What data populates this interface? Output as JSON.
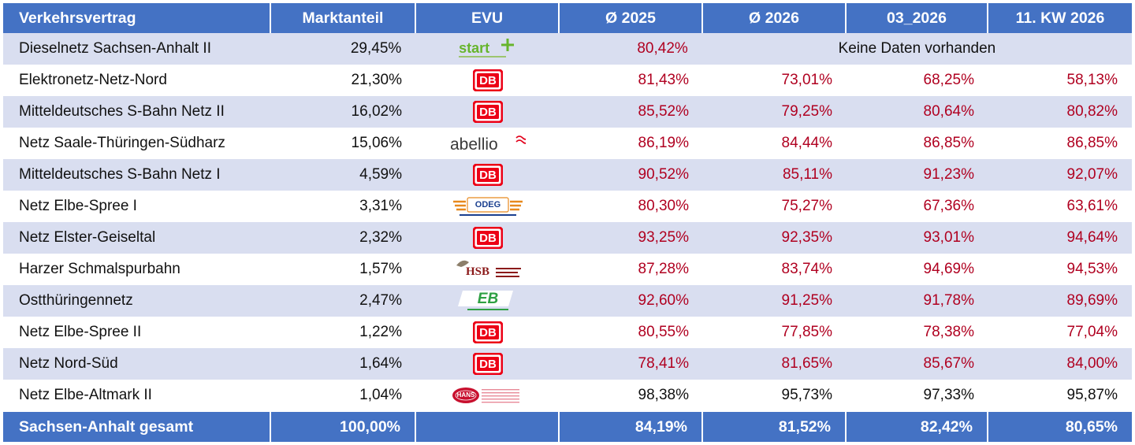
{
  "headers": [
    "Verkehrsvertrag",
    "Marktanteil",
    "EVU",
    "Ø 2025",
    "Ø 2026",
    "03_2026",
    "11. KW 2026"
  ],
  "rows": [
    {
      "name": "Dieselnetz Sachsen-Anhalt II",
      "share": "29,45%",
      "evu": "start-logo",
      "evu_text": "start",
      "v2025": "80,42%",
      "nodata": "Keine Daten vorhanden"
    },
    {
      "name": "Elektronetz-Netz-Nord",
      "share": "21,30%",
      "evu": "db-logo",
      "evu_text": "DB",
      "v2025": "81,43%",
      "v2026": "73,01%",
      "v03": "68,25%",
      "vkw": "58,13%"
    },
    {
      "name": "Mitteldeutsches S-Bahn Netz II",
      "share": "16,02%",
      "evu": "db-logo",
      "evu_text": "DB",
      "v2025": "85,52%",
      "v2026": "79,25%",
      "v03": "80,64%",
      "vkw": "80,82%"
    },
    {
      "name": "Netz Saale-Thüringen-Südharz",
      "share": "15,06%",
      "evu": "abellio-logo",
      "evu_text": "abellio",
      "v2025": "86,19%",
      "v2026": "84,44%",
      "v03": "86,85%",
      "vkw": "86,85%"
    },
    {
      "name": "Mitteldeutsches S-Bahn Netz I",
      "share": "4,59%",
      "evu": "db-logo",
      "evu_text": "DB",
      "v2025": "90,52%",
      "v2026": "85,11%",
      "v03": "91,23%",
      "vkw": "92,07%"
    },
    {
      "name": "Netz Elbe-Spree I",
      "share": "3,31%",
      "evu": "odeg-logo",
      "evu_text": "ODEG",
      "v2025": "80,30%",
      "v2026": "75,27%",
      "v03": "67,36%",
      "vkw": "63,61%"
    },
    {
      "name": "Netz Elster-Geiseltal",
      "share": "2,32%",
      "evu": "db-logo",
      "evu_text": "DB",
      "v2025": "93,25%",
      "v2026": "92,35%",
      "v03": "93,01%",
      "vkw": "94,64%"
    },
    {
      "name": "Harzer Schmalspurbahn",
      "share": "1,57%",
      "evu": "hsb-logo",
      "evu_text": "HSB",
      "v2025": "87,28%",
      "v2026": "83,74%",
      "v03": "94,69%",
      "vkw": "94,53%"
    },
    {
      "name": "Ostthüringennetz",
      "share": "2,47%",
      "evu": "eb-logo",
      "evu_text": "EB",
      "v2025": "92,60%",
      "v2026": "91,25%",
      "v03": "91,78%",
      "vkw": "89,69%"
    },
    {
      "name": "Netz Elbe-Spree II",
      "share": "1,22%",
      "evu": "db-logo",
      "evu_text": "DB",
      "v2025": "80,55%",
      "v2026": "77,85%",
      "v03": "78,38%",
      "vkw": "77,04%"
    },
    {
      "name": "Netz Nord-Süd",
      "share": "1,64%",
      "evu": "db-logo",
      "evu_text": "DB",
      "v2025": "78,41%",
      "v2026": "81,65%",
      "v03": "85,67%",
      "vkw": "84,00%"
    },
    {
      "name": "Netz Elbe-Altmark II",
      "share": "1,04%",
      "evu": "hans-logo",
      "evu_text": "HANS",
      "v2025": "98,38%",
      "v2026": "95,73%",
      "v03": "97,33%",
      "vkw": "95,87%"
    }
  ],
  "total": {
    "name": "Sachsen-Anhalt gesamt",
    "share": "100,00%",
    "v2025": "84,19%",
    "v2026": "81,52%",
    "v03": "82,42%",
    "vkw": "80,65%"
  },
  "colors": {
    "header_bg": "#4472C4",
    "row_alt": "#D9DEF0",
    "below_target": "#B00020",
    "on_target": "#111111"
  },
  "threshold_percent": 95
}
